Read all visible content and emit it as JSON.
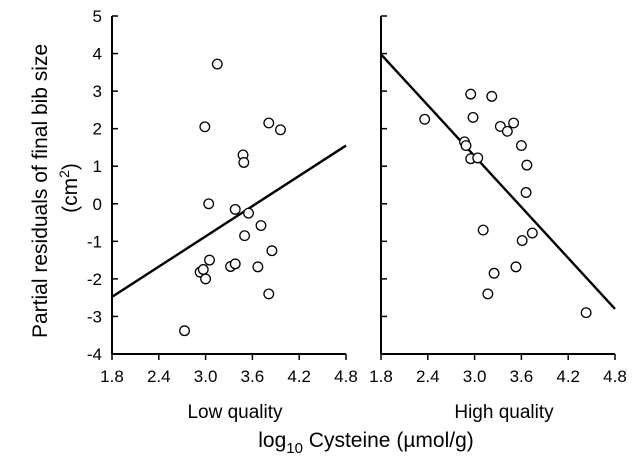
{
  "chart_data": {
    "type": "scatter",
    "ylabel_line1": "Partial residuals of final bib size",
    "ylabel_line2_prefix": "(cm",
    "ylabel_line2_sup": "2",
    "ylabel_line2_suffix": ")",
    "xlabel_prefix": "log",
    "xlabel_sub": "10",
    "xlabel_suffix": " Cysteine (µmol/g)",
    "ylim": [
      -4,
      5
    ],
    "xlim": [
      1.8,
      4.8
    ],
    "y_ticks": [
      "5",
      "4",
      "3",
      "2",
      "1",
      "0",
      "-1",
      "-2",
      "-3",
      "-4"
    ],
    "y_tick_values": [
      5,
      4,
      3,
      2,
      1,
      0,
      -1,
      -2,
      -3,
      -4
    ],
    "x_ticks": [
      "1.8",
      "2.4",
      "3.0",
      "3.6",
      "4.2",
      "4.8"
    ],
    "x_tick_values": [
      1.8,
      2.4,
      3.0,
      3.6,
      4.2,
      4.8
    ],
    "grid": false,
    "panels": [
      {
        "label": "Low quality",
        "points": [
          {
            "x": 2.73,
            "y": -3.38
          },
          {
            "x": 2.93,
            "y": -1.82
          },
          {
            "x": 2.97,
            "y": -1.75
          },
          {
            "x": 2.99,
            "y": 2.05
          },
          {
            "x": 3.0,
            "y": -2.0
          },
          {
            "x": 3.04,
            "y": 0.0
          },
          {
            "x": 3.05,
            "y": -1.5
          },
          {
            "x": 3.15,
            "y": 3.72
          },
          {
            "x": 3.32,
            "y": -1.67
          },
          {
            "x": 3.38,
            "y": -1.6
          },
          {
            "x": 3.38,
            "y": -0.15
          },
          {
            "x": 3.48,
            "y": 1.3
          },
          {
            "x": 3.49,
            "y": 1.1
          },
          {
            "x": 3.5,
            "y": -0.85
          },
          {
            "x": 3.55,
            "y": -0.25
          },
          {
            "x": 3.67,
            "y": -1.68
          },
          {
            "x": 3.71,
            "y": -0.58
          },
          {
            "x": 3.81,
            "y": -2.4
          },
          {
            "x": 3.81,
            "y": 2.15
          },
          {
            "x": 3.85,
            "y": -1.25
          },
          {
            "x": 3.96,
            "y": 1.97
          }
        ],
        "fit_line": {
          "x": [
            1.8,
            4.8
          ],
          "y": [
            -2.48,
            1.55
          ]
        }
      },
      {
        "label": "High quality",
        "points": [
          {
            "x": 2.36,
            "y": 2.25
          },
          {
            "x": 2.87,
            "y": 1.65
          },
          {
            "x": 2.89,
            "y": 1.55
          },
          {
            "x": 2.95,
            "y": 2.92
          },
          {
            "x": 2.95,
            "y": 1.2
          },
          {
            "x": 2.98,
            "y": 2.3
          },
          {
            "x": 3.04,
            "y": 1.22
          },
          {
            "x": 3.11,
            "y": -0.7
          },
          {
            "x": 3.17,
            "y": -2.4
          },
          {
            "x": 3.22,
            "y": 2.86
          },
          {
            "x": 3.25,
            "y": -1.85
          },
          {
            "x": 3.33,
            "y": 2.06
          },
          {
            "x": 3.42,
            "y": 1.93
          },
          {
            "x": 3.5,
            "y": 2.15
          },
          {
            "x": 3.53,
            "y": -1.68
          },
          {
            "x": 3.6,
            "y": 1.55
          },
          {
            "x": 3.61,
            "y": -0.98
          },
          {
            "x": 3.66,
            "y": 0.3
          },
          {
            "x": 3.67,
            "y": 1.03
          },
          {
            "x": 3.74,
            "y": -0.78
          },
          {
            "x": 4.43,
            "y": -2.9
          }
        ],
        "fit_line": {
          "x": [
            1.8,
            4.8
          ],
          "y": [
            3.98,
            -2.8
          ]
        }
      }
    ]
  }
}
